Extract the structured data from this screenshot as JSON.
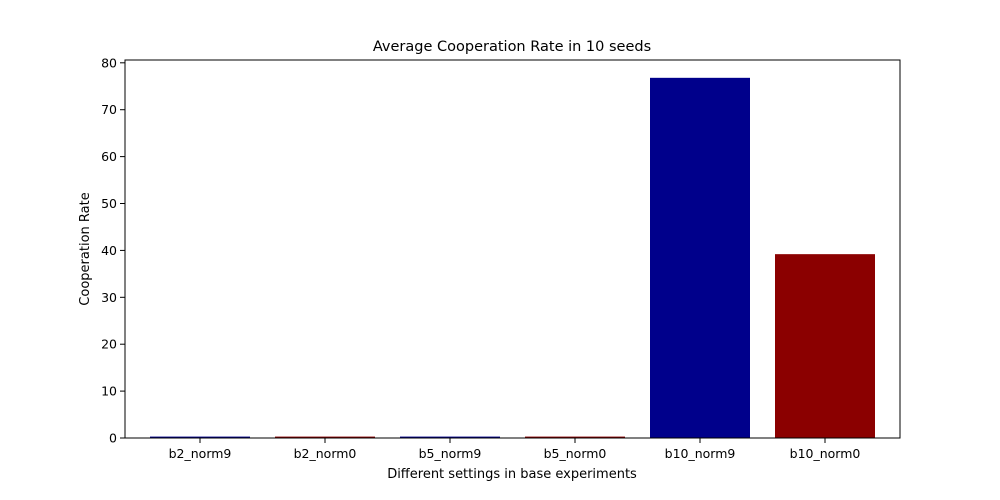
{
  "chart_data": {
    "type": "bar",
    "title": "Average Cooperation Rate in 10 seeds",
    "xlabel": "Different settings in base experiments",
    "ylabel": "Cooperation Rate",
    "categories": [
      "b2_norm9",
      "b2_norm0",
      "b5_norm9",
      "b5_norm0",
      "b10_norm9",
      "b10_norm0"
    ],
    "values": [
      0.3,
      0.3,
      0.3,
      0.3,
      76.8,
      39.2
    ],
    "colors": [
      "#00008b",
      "#8b0000",
      "#00008b",
      "#8b0000",
      "#00008b",
      "#8b0000"
    ],
    "yticks": [
      0,
      10,
      20,
      30,
      40,
      50,
      60,
      70,
      80
    ],
    "ylim": [
      0,
      80.6
    ],
    "grid": false,
    "legend": "none"
  }
}
